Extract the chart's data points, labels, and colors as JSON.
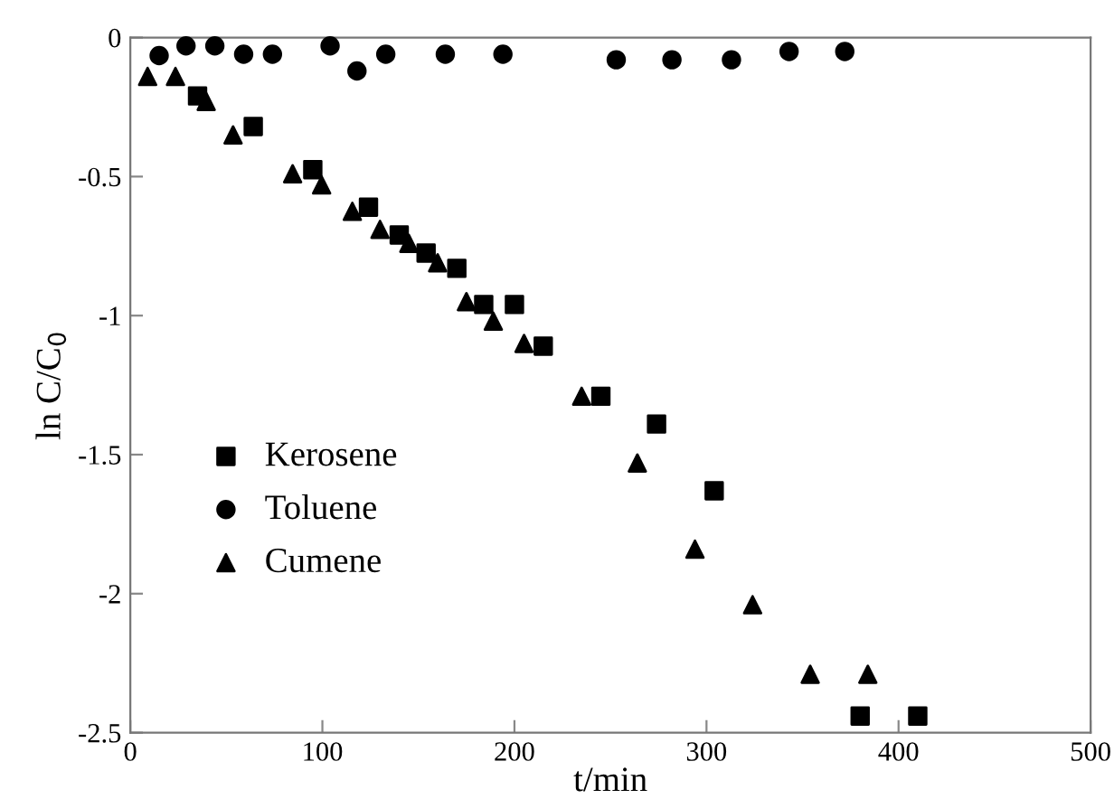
{
  "chart_data": {
    "type": "scatter",
    "xlabel": "t/min",
    "ylabel": "ln C/C$_{0}$",
    "xlim": [
      0,
      500
    ],
    "ylim": [
      -2.5,
      0
    ],
    "xticks": [
      0,
      100,
      200,
      300,
      400,
      500
    ],
    "yticks": [
      0,
      -0.5,
      -1,
      -1.5,
      -2,
      -2.5
    ],
    "grid": false,
    "legend": "left",
    "series": [
      {
        "name": "Kerosene",
        "color": "#000000",
        "marker": "square",
        "x": [
          35,
          64,
          95,
          124,
          140,
          154,
          170,
          184,
          200,
          215,
          245,
          274,
          304,
          380,
          410
        ],
        "values": [
          -0.21,
          -0.32,
          -0.475,
          -0.61,
          -0.71,
          -0.775,
          -0.83,
          -0.96,
          -0.96,
          -1.11,
          -1.29,
          -1.39,
          -1.63,
          -2.44,
          -2.44
        ]
      },
      {
        "name": "Toluene",
        "color": "#000000",
        "marker": "circle",
        "x": [
          15,
          29,
          44,
          59,
          74,
          104,
          118,
          133,
          164,
          194,
          253,
          282,
          313,
          343,
          372
        ],
        "values": [
          -0.065,
          -0.03,
          -0.03,
          -0.06,
          -0.06,
          -0.03,
          -0.12,
          -0.06,
          -0.06,
          -0.06,
          -0.08,
          -0.08,
          -0.08,
          -0.05,
          -0.05
        ]
      },
      {
        "name": "Cumene",
        "color": "#000000",
        "marker": "triangle",
        "x": [
          9,
          23.5,
          39.5,
          53.5,
          84.5,
          99.6,
          115.6,
          130,
          145,
          160,
          175,
          189,
          205,
          235,
          264,
          294,
          324,
          354,
          384
        ],
        "values": [
          -0.14,
          -0.14,
          -0.23,
          -0.35,
          -0.49,
          -0.53,
          -0.625,
          -0.69,
          -0.74,
          -0.81,
          -0.95,
          -1.02,
          -1.1,
          -1.29,
          -1.53,
          -1.84,
          -2.04,
          -2.29,
          -2.29
        ]
      }
    ]
  }
}
